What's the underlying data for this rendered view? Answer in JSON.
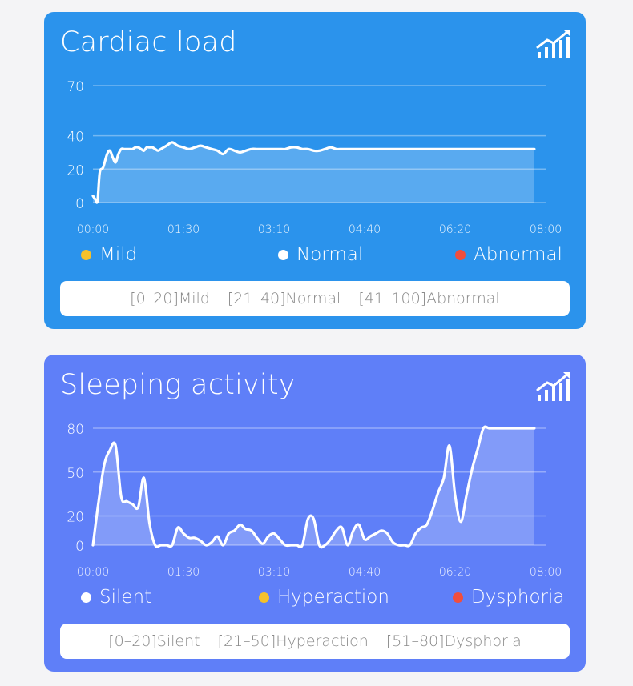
{
  "colors": {
    "cardiac_bg": "#2b93ec",
    "sleep_bg": "#5f7ff8",
    "yellow": "#f5c12a",
    "white": "#ffffff",
    "red": "#f04e3e"
  },
  "cards": [
    {
      "title": "Cardiac load",
      "icon": "trend-chart-icon",
      "legend": [
        {
          "label": "Mild",
          "color": "#f5c12a"
        },
        {
          "label": "Normal",
          "color": "#ffffff"
        },
        {
          "label": "Abnormal",
          "color": "#f04e3e"
        }
      ],
      "ranges": [
        "[0–20]Mild",
        "[21–40]Normal",
        "[41–100]Abnormal"
      ]
    },
    {
      "title": "Sleeping activity",
      "icon": "trend-chart-icon",
      "legend": [
        {
          "label": "Silent",
          "color": "#ffffff"
        },
        {
          "label": "Hyperaction",
          "color": "#f5c12a"
        },
        {
          "label": "Dysphoria",
          "color": "#f04e3e"
        }
      ],
      "ranges": [
        "[0–20]Silent",
        "[21–50]Hyperaction",
        "[51–80]Dysphoria"
      ]
    }
  ],
  "chart_data": [
    {
      "type": "area",
      "x_ticks": [
        "00:00",
        "01:30",
        "03:10",
        "04:40",
        "06:20",
        "08:00"
      ],
      "y_ticks": [
        0,
        20,
        40,
        70
      ],
      "ylim": [
        0,
        70
      ],
      "grid": true,
      "legend_placement": "bottom",
      "series": [
        {
          "x": [
            0,
            0.04,
            0.08,
            0.12,
            0.18,
            0.25,
            0.3,
            0.35,
            0.4,
            0.45,
            0.5,
            0.55,
            0.6,
            0.65,
            0.7,
            0.75,
            0.8,
            0.85,
            0.9,
            0.95,
            1.0,
            1.05,
            1.1,
            1.15,
            1.2,
            1.3,
            1.4,
            1.5,
            1.6,
            1.7,
            1.8,
            1.9,
            2.0,
            2.1,
            2.2,
            2.3,
            2.4,
            2.5,
            2.6,
            2.7,
            2.8,
            2.9,
            3.0,
            3.1,
            3.2,
            3.3,
            3.4,
            3.5,
            3.6,
            3.7,
            3.8,
            3.9,
            4.0,
            4.1,
            4.2,
            4.3,
            4.4,
            4.5,
            4.6,
            4.7,
            4.8,
            4.9,
            5.0,
            5.2,
            5.4,
            5.6,
            5.8,
            6.0,
            6.2,
            6.4,
            6.6,
            6.8,
            7.0,
            7.2,
            7.4,
            7.6,
            7.8
          ],
          "values": [
            4,
            2,
            1,
            18,
            21,
            29,
            31,
            27,
            24,
            29,
            32,
            32,
            32,
            32,
            32,
            33,
            33,
            32,
            31,
            33,
            33,
            33,
            32,
            31,
            32,
            34,
            36,
            34,
            33,
            32,
            33,
            34,
            33,
            32,
            31,
            29,
            32,
            31,
            30,
            31,
            32,
            32,
            32,
            32,
            32,
            32,
            32,
            33,
            33,
            32,
            32,
            31,
            31,
            32,
            33,
            32,
            32,
            32,
            32,
            32,
            32,
            32,
            32,
            32,
            32,
            32,
            32,
            32,
            32,
            32,
            32,
            32,
            32,
            32,
            32,
            32,
            32
          ]
        }
      ]
    },
    {
      "type": "area",
      "x_ticks": [
        "00:00",
        "01:30",
        "03:10",
        "04:40",
        "06:20",
        "08:00"
      ],
      "y_ticks": [
        0,
        20,
        50,
        80
      ],
      "ylim": [
        0,
        80
      ],
      "grid": true,
      "legend_placement": "bottom",
      "series": [
        {
          "x": [
            0,
            0.1,
            0.2,
            0.3,
            0.4,
            0.5,
            0.6,
            0.7,
            0.8,
            0.9,
            1.0,
            1.1,
            1.2,
            1.3,
            1.4,
            1.5,
            1.6,
            1.7,
            1.8,
            1.9,
            2.0,
            2.1,
            2.2,
            2.3,
            2.4,
            2.5,
            2.6,
            2.7,
            2.8,
            2.9,
            3.0,
            3.1,
            3.2,
            3.3,
            3.4,
            3.5,
            3.6,
            3.7,
            3.8,
            3.9,
            4.0,
            4.1,
            4.2,
            4.3,
            4.4,
            4.5,
            4.6,
            4.7,
            4.8,
            4.9,
            5.0,
            5.1,
            5.2,
            5.3,
            5.4,
            5.5,
            5.6,
            5.7,
            5.8,
            5.9,
            6.0,
            6.1,
            6.2,
            6.3,
            6.4,
            6.5,
            6.6,
            6.7,
            6.8,
            6.9,
            7.0,
            7.1,
            7.2,
            7.3,
            7.4,
            7.5,
            7.6,
            7.7,
            7.8
          ],
          "values": [
            0,
            30,
            55,
            65,
            68,
            33,
            30,
            28,
            26,
            46,
            15,
            0,
            0,
            0,
            0,
            12,
            8,
            5,
            5,
            3,
            0,
            2,
            6,
            0,
            8,
            10,
            14,
            11,
            10,
            5,
            1,
            6,
            8,
            4,
            0,
            0,
            0,
            0,
            18,
            18,
            0,
            0,
            4,
            10,
            12,
            0,
            10,
            14,
            4,
            6,
            8,
            10,
            8,
            2,
            0,
            0,
            0,
            8,
            12,
            14,
            24,
            36,
            46,
            68,
            34,
            16,
            34,
            52,
            66,
            80,
            80,
            80,
            80,
            80,
            80,
            80,
            80,
            80,
            80
          ]
        }
      ]
    }
  ]
}
